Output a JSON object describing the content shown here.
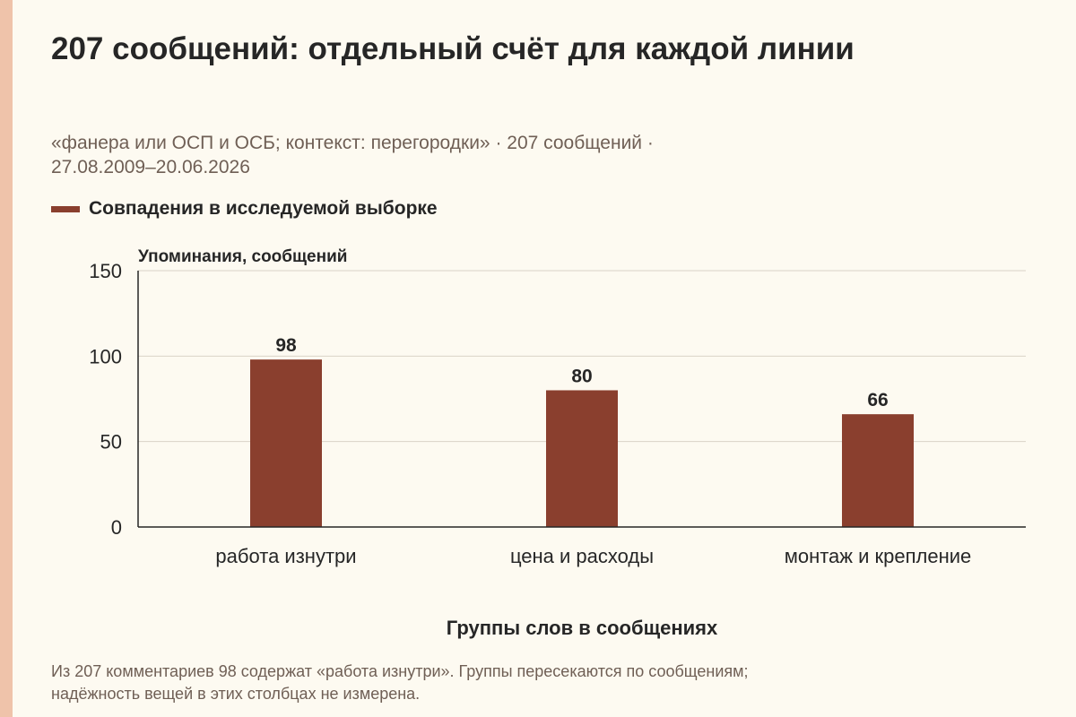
{
  "title": "207 сообщений: отдельный счёт для каждой линии",
  "subtitle_line1": "«фанера или ОСП и ОСБ; контекст: перегородки» · 207 сообщений ·",
  "subtitle_line2": "27.08.2009–20.06.2026",
  "legend": {
    "label": "Совпадения в исследуемой выборке"
  },
  "footnote_line1": "Из 207 комментариев 98 содержат «работа изнутри». Группы пересекаются по сообщениям;",
  "footnote_line2": "надёжность вещей в этих столбцах не измерена.",
  "colors": {
    "bar": "#8a3f2e",
    "accent_strip": "#efc3aa",
    "grid": "#d9d3c6",
    "background": "#fdfaf1"
  },
  "chart_data": {
    "type": "bar",
    "title": "207 сообщений: отдельный счёт для каждой линии",
    "xlabel": "Группы слов в сообщениях",
    "ylabel": "Упоминания, сообщений",
    "categories": [
      "работа изнутри",
      "цена и расходы",
      "монтаж и крепление"
    ],
    "series": [
      {
        "name": "Совпадения в исследуемой выборке",
        "values": [
          98,
          80,
          66
        ]
      }
    ],
    "ylim": [
      0,
      150
    ],
    "yticks": [
      0,
      50,
      100,
      150
    ],
    "data_labels": true,
    "grid": true,
    "legend_position": "top-left"
  }
}
